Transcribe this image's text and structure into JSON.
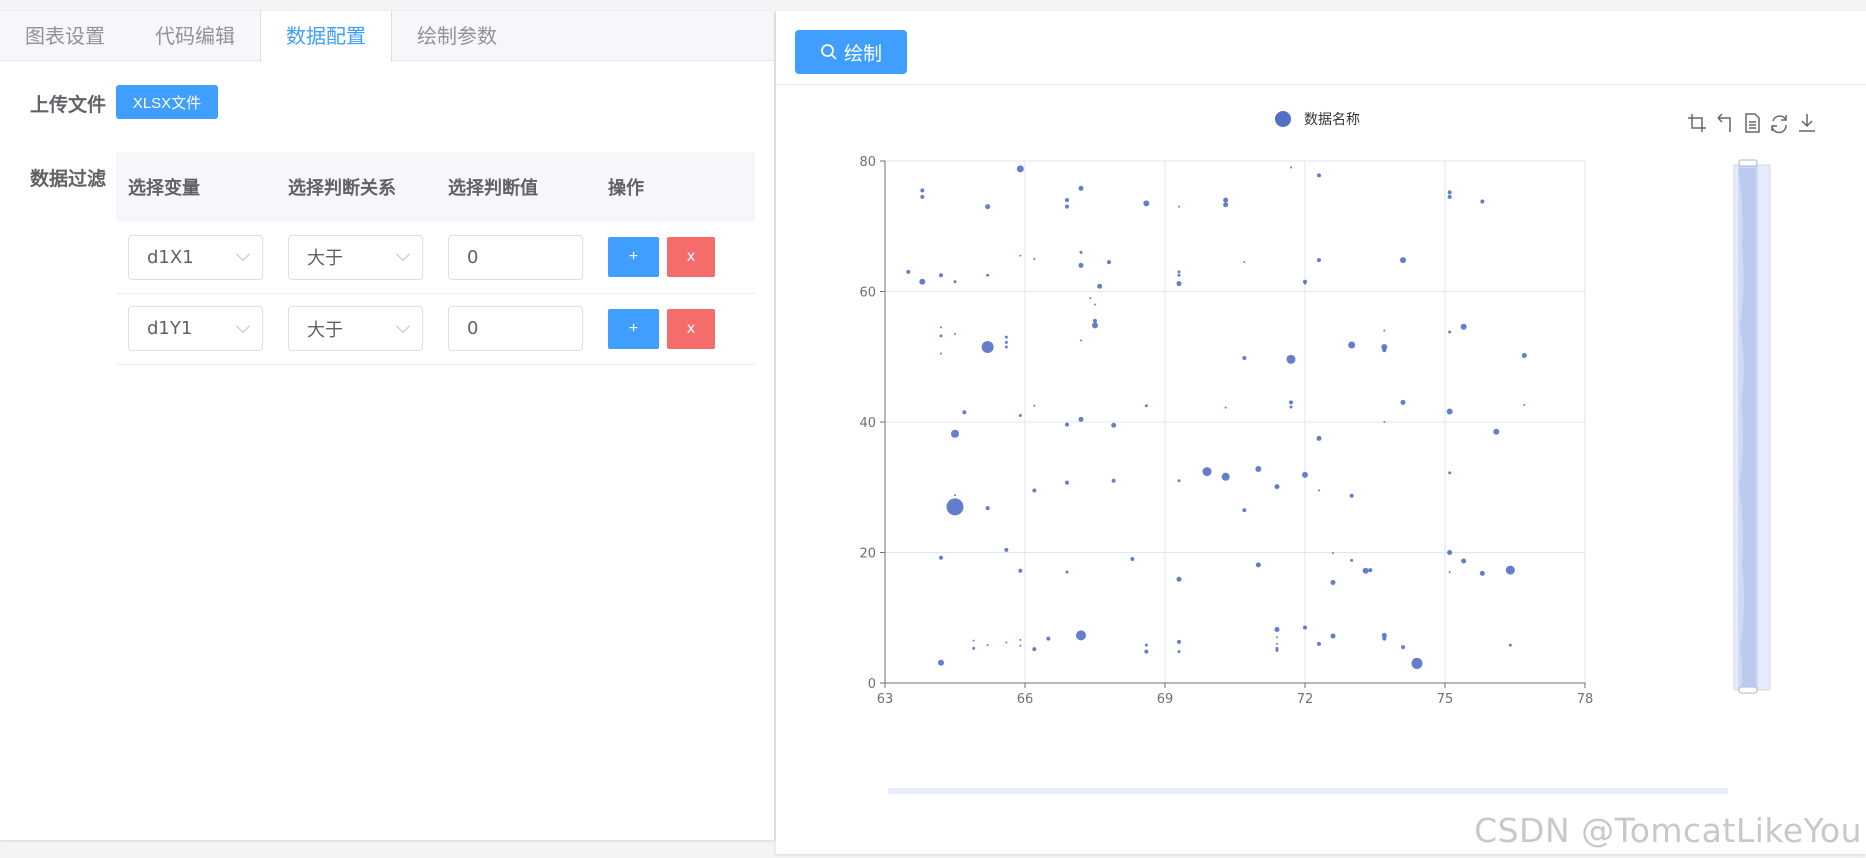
{
  "tabs": [
    {
      "label": "图表设置"
    },
    {
      "label": "代码编辑"
    },
    {
      "label": "数据配置"
    },
    {
      "label": "绘制参数"
    }
  ],
  "form": {
    "upload_label": "上传文件",
    "upload_button": "XLSX文件",
    "filter_label": "数据过滤",
    "columns": [
      "选择变量",
      "选择判断关系",
      "选择判断值",
      "操作"
    ],
    "rows": [
      {
        "variable": "d1X1",
        "relation": "大于",
        "value": "0",
        "add": "+",
        "delete": "x"
      },
      {
        "variable": "d1Y1",
        "relation": "大于",
        "value": "0",
        "add": "+",
        "delete": "x"
      }
    ]
  },
  "toolbar": {
    "draw_button": "绘制"
  },
  "chart_icons": [
    "crop-icon",
    "undo-icon",
    "data-view-icon",
    "refresh-icon",
    "download-icon"
  ],
  "watermark": "CSDN @TomcatLikeYou",
  "colors": {
    "accent": "#409eff",
    "danger": "#f56c6c",
    "series": "#5470c6"
  },
  "chart_data": {
    "type": "scatter",
    "legend": [
      "数据名称"
    ],
    "xlim": [
      63,
      78
    ],
    "ylim": [
      0,
      80
    ],
    "xticks": [
      63,
      66,
      69,
      72,
      75,
      78
    ],
    "yticks": [
      0,
      20,
      40,
      60,
      80
    ],
    "series": [
      {
        "name": "数据名称",
        "points": [
          [
            63.5,
            63,
            2
          ],
          [
            63.8,
            75.5,
            2
          ],
          [
            63.8,
            74.5,
            2
          ],
          [
            63.8,
            61.5,
            3
          ],
          [
            64.2,
            62.5,
            2
          ],
          [
            64.5,
            61.5,
            1.5
          ],
          [
            65.2,
            62.5,
            1.5
          ],
          [
            65.9,
            65.5,
            1
          ],
          [
            66.2,
            65,
            1
          ],
          [
            65.9,
            78.8,
            3.5
          ],
          [
            65.2,
            73,
            2.5
          ],
          [
            67.4,
            59,
            1
          ],
          [
            67.5,
            58,
            1
          ],
          [
            67.5,
            55.5,
            2
          ],
          [
            67.5,
            54.8,
            3
          ],
          [
            67.8,
            64.5,
            2
          ],
          [
            67.2,
            66,
            1.5
          ],
          [
            67.2,
            64,
            2.5
          ],
          [
            66.9,
            74,
            2
          ],
          [
            66.9,
            73,
            2
          ],
          [
            67.2,
            75.8,
            2.5
          ],
          [
            67.6,
            60.8,
            2.5
          ],
          [
            68.6,
            73.5,
            3
          ],
          [
            69.3,
            73,
            1
          ],
          [
            69.3,
            63,
            1.5
          ],
          [
            69.3,
            62.5,
            1.5
          ],
          [
            69.3,
            61.2,
            2.5
          ],
          [
            70.3,
            74,
            2.5
          ],
          [
            70.3,
            73.3,
            2.5
          ],
          [
            70.7,
            64.5,
            1
          ],
          [
            71.7,
            79,
            1
          ],
          [
            72.0,
            61.5,
            2
          ],
          [
            72.0,
            61.2,
            1
          ],
          [
            72.3,
            77.8,
            2
          ],
          [
            72.3,
            64.8,
            2
          ],
          [
            74.1,
            64.8,
            3
          ],
          [
            75.1,
            75.2,
            2
          ],
          [
            75.1,
            74.5,
            2
          ],
          [
            75.8,
            73.8,
            2
          ],
          [
            64.2,
            54.5,
            1
          ],
          [
            64.2,
            53.2,
            1.5
          ],
          [
            64.2,
            50.5,
            1
          ],
          [
            64.5,
            53.5,
            1
          ],
          [
            65.2,
            51.5,
            6
          ],
          [
            65.6,
            53,
            1.5
          ],
          [
            65.6,
            52.2,
            1.5
          ],
          [
            65.6,
            51.5,
            1.5
          ],
          [
            67.2,
            52.5,
            1
          ],
          [
            70.7,
            49.8,
            2
          ],
          [
            71.7,
            49.6,
            4.5
          ],
          [
            73.0,
            51.8,
            3.5
          ],
          [
            73.7,
            54,
            1
          ],
          [
            73.7,
            51.5,
            3
          ],
          [
            73.7,
            51,
            2
          ],
          [
            75.1,
            53.8,
            1.5
          ],
          [
            75.4,
            54.6,
            3
          ],
          [
            76.7,
            50.2,
            2.5
          ],
          [
            64.7,
            41.5,
            2
          ],
          [
            64.5,
            38.2,
            4
          ],
          [
            65.9,
            41,
            1.5
          ],
          [
            66.2,
            42.5,
            1
          ],
          [
            66.9,
            39.6,
            2
          ],
          [
            67.2,
            40.4,
            2.5
          ],
          [
            67.9,
            39.5,
            2.5
          ],
          [
            68.6,
            42.5,
            1.5
          ],
          [
            70.3,
            42.2,
            1
          ],
          [
            71.7,
            43,
            2
          ],
          [
            71.7,
            42.3,
            1.5
          ],
          [
            72.3,
            37.5,
            2.5
          ],
          [
            73.7,
            40,
            1
          ],
          [
            74.1,
            43,
            2.5
          ],
          [
            75.1,
            41.6,
            3
          ],
          [
            76.1,
            38.5,
            3
          ],
          [
            76.7,
            42.6,
            1
          ],
          [
            64.5,
            27,
            8.5
          ],
          [
            64.5,
            28.8,
            1
          ],
          [
            65.2,
            26.8,
            2
          ],
          [
            66.2,
            29.5,
            2
          ],
          [
            66.9,
            30.7,
            2
          ],
          [
            67.9,
            31,
            2
          ],
          [
            69.3,
            31,
            1.5
          ],
          [
            69.9,
            32.4,
            4.5
          ],
          [
            70.3,
            31.6,
            4
          ],
          [
            70.7,
            26.5,
            2
          ],
          [
            71.0,
            32.8,
            3
          ],
          [
            71.4,
            30.1,
            2.5
          ],
          [
            72.0,
            31.9,
            3
          ],
          [
            72.3,
            29.5,
            1
          ],
          [
            73.0,
            28.7,
            2
          ],
          [
            75.1,
            32.2,
            1.5
          ],
          [
            64.2,
            19.2,
            2
          ],
          [
            65.6,
            20.4,
            2
          ],
          [
            65.9,
            17.2,
            2
          ],
          [
            66.9,
            17,
            1.5
          ],
          [
            68.3,
            19,
            2
          ],
          [
            69.3,
            15.9,
            2.5
          ],
          [
            71.0,
            18.1,
            2.5
          ],
          [
            72.6,
            19.9,
            1
          ],
          [
            72.6,
            15.4,
            2.5
          ],
          [
            73.0,
            18.8,
            1.5
          ],
          [
            73.3,
            17.2,
            3
          ],
          [
            73.4,
            17.3,
            2
          ],
          [
            75.1,
            20,
            2.5
          ],
          [
            75.1,
            17,
            1
          ],
          [
            75.4,
            18.7,
            2.5
          ],
          [
            75.8,
            16.8,
            2.5
          ],
          [
            76.4,
            17.3,
            4.5
          ],
          [
            64.2,
            3.1,
            3
          ],
          [
            64.9,
            5.3,
            1.5
          ],
          [
            64.9,
            6.5,
            1
          ],
          [
            65.2,
            5.8,
            1
          ],
          [
            65.6,
            6.2,
            1
          ],
          [
            65.9,
            6.6,
            1
          ],
          [
            65.9,
            5.7,
            1
          ],
          [
            66.2,
            5.2,
            2
          ],
          [
            66.5,
            6.8,
            2
          ],
          [
            67.2,
            7.3,
            5
          ],
          [
            68.6,
            4.8,
            2
          ],
          [
            68.6,
            5.8,
            1.5
          ],
          [
            69.3,
            6.3,
            2
          ],
          [
            69.3,
            4.8,
            1.5
          ],
          [
            71.4,
            8.2,
            2.5
          ],
          [
            71.4,
            7,
            1
          ],
          [
            71.4,
            6,
            1
          ],
          [
            71.4,
            5.3,
            1.5
          ],
          [
            71.4,
            5,
            1.5
          ],
          [
            72.0,
            8.5,
            2
          ],
          [
            72.3,
            6,
            2
          ],
          [
            72.6,
            7.2,
            2.5
          ],
          [
            73.7,
            7.3,
            2.5
          ],
          [
            73.7,
            6.8,
            2
          ],
          [
            74.1,
            5.5,
            2
          ],
          [
            74.4,
            3,
            5.5
          ],
          [
            76.4,
            5.8,
            1.5
          ]
        ]
      }
    ]
  }
}
